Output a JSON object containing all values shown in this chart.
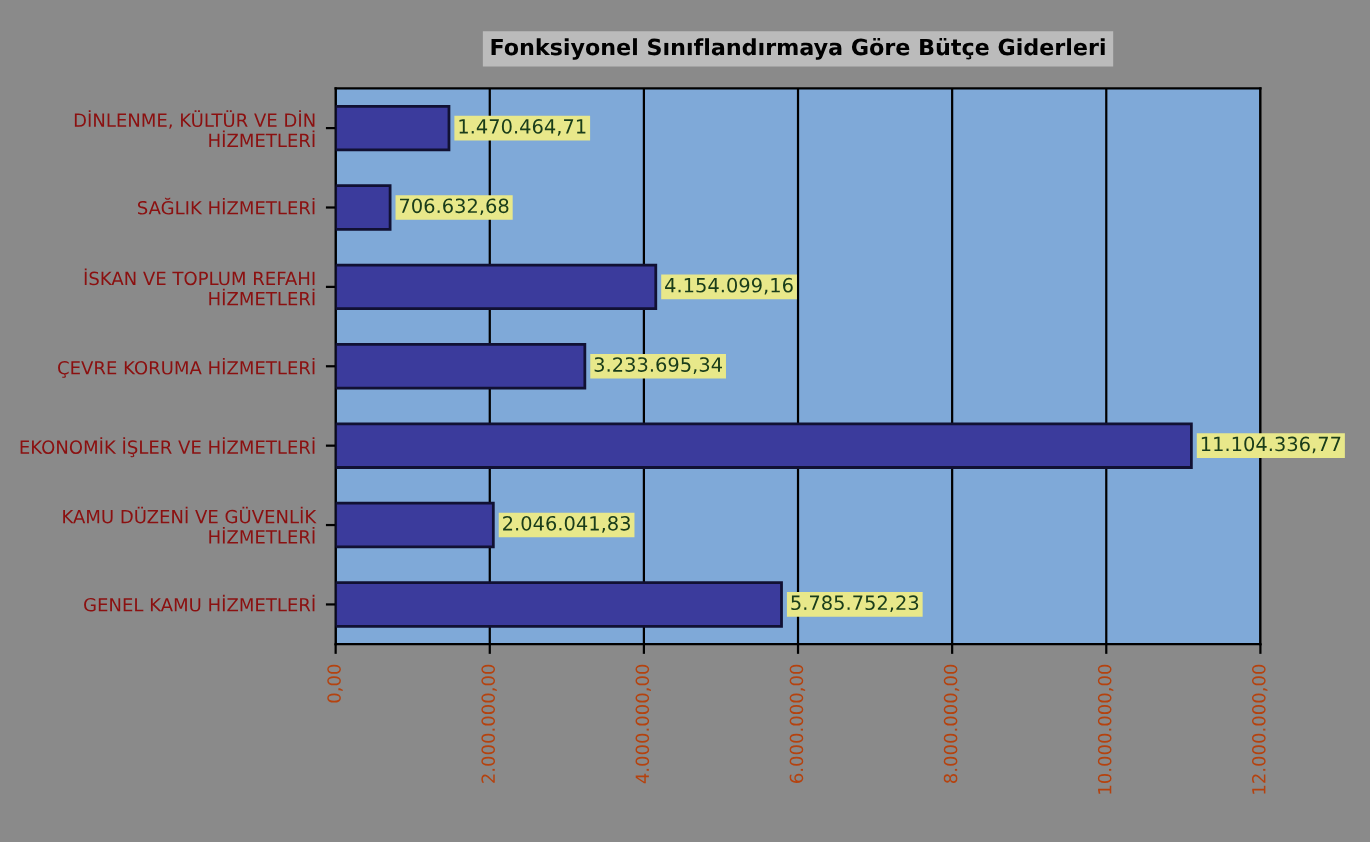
{
  "chart_data": {
    "type": "bar",
    "orientation": "horizontal",
    "title": "Fonksiyonel Sınıflandırmaya Göre Bütçe Giderleri",
    "categories": [
      "DİNLENME, KÜLTÜR VE DİN HİZMETLERİ",
      "SAĞLIK HİZMETLERİ",
      "İSKAN VE TOPLUM REFAHI HİZMETLERİ",
      "ÇEVRE KORUMA HİZMETLERİ",
      "EKONOMİK İŞLER VE HİZMETLERİ",
      "KAMU DÜZENİ VE GÜVENLİK HİZMETLERİ",
      "GENEL KAMU HİZMETLERİ"
    ],
    "values": [
      1470464.71,
      706632.68,
      4154099.16,
      3233695.34,
      11104336.77,
      2046041.83,
      5785752.23
    ],
    "value_labels": [
      "1.470.464,71",
      "706.632,68",
      "4.154.099,16",
      "3.233.695,34",
      "11.104.336,77",
      "2.046.041,83",
      "5.785.752,23"
    ],
    "color": "#3b3b9c",
    "xlim": [
      0,
      12000000
    ],
    "xticks": [
      {
        "value": 0,
        "label": "0,00"
      },
      {
        "value": 2000000,
        "label": "2.000.000,00"
      },
      {
        "value": 4000000,
        "label": "4.000.000,00"
      },
      {
        "value": 6000000,
        "label": "6.000.000,00"
      },
      {
        "value": 8000000,
        "label": "8.000.000,00"
      },
      {
        "value": 10000000,
        "label": "10.000.000,00"
      },
      {
        "value": 12000000,
        "label": "12.000.000,00"
      }
    ],
    "grid": "x",
    "legend": false
  }
}
